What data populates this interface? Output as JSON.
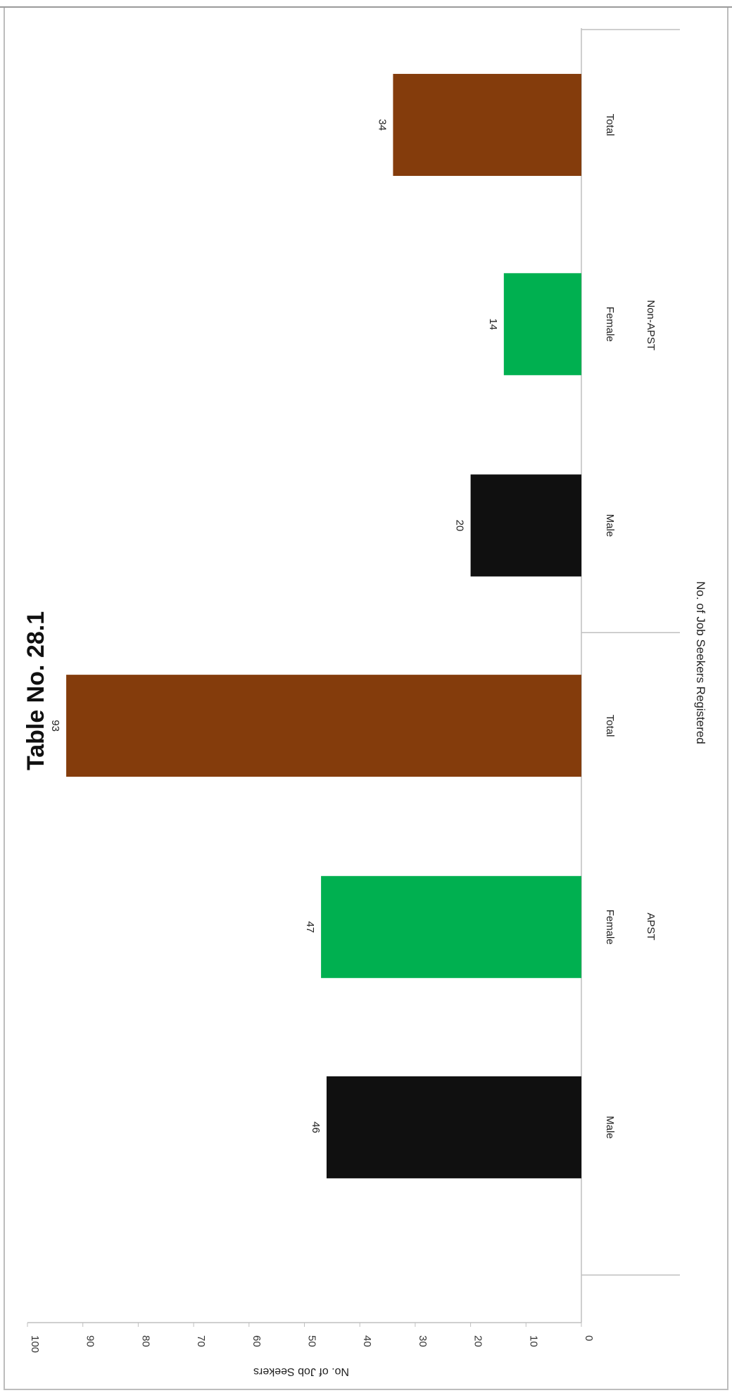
{
  "chart_data": {
    "type": "bar",
    "title": "Table No. 28.1",
    "xlabel": "No. of Job Seekers Registered",
    "ylabel": "No. of Job Seekers",
    "ylim": [
      0,
      100
    ],
    "yticks": [
      0,
      10,
      20,
      30,
      40,
      50,
      60,
      70,
      80,
      90,
      100
    ],
    "groups": [
      {
        "label": "APST",
        "categories": [
          "Male",
          "Female",
          "Total"
        ],
        "values": [
          46,
          47,
          93
        ]
      },
      {
        "label": "Non-APST",
        "categories": [
          "Male",
          "Female",
          "Total"
        ],
        "values": [
          20,
          14,
          34
        ]
      }
    ],
    "category_colors": {
      "Male": "#101010",
      "Female": "#00b050",
      "Total": "#843c0c"
    },
    "grid": false,
    "orientation": "rotated-90"
  }
}
